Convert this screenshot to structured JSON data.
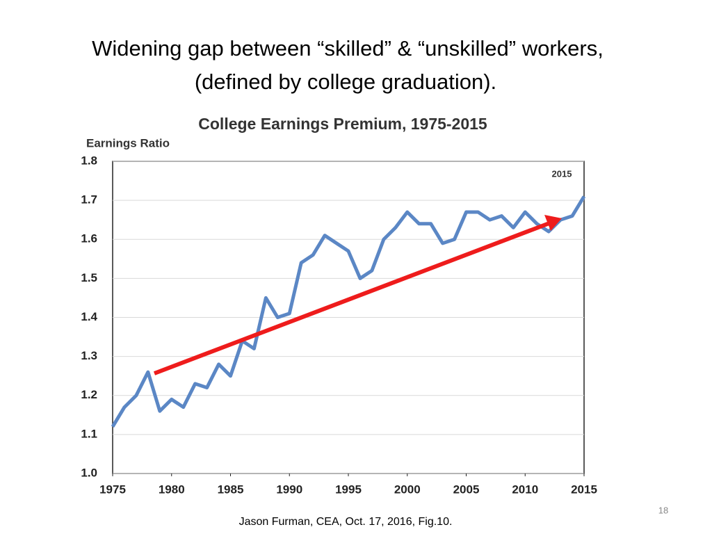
{
  "slide": {
    "title_lines": [
      "Widening gap between “skilled” & “unskilled” workers,",
      "(defined by college graduation)."
    ],
    "footer": "Jason Furman, CEA, Oct. 17, 2016, Fig.10.",
    "page_number": "18"
  },
  "chart_data": {
    "type": "line",
    "title": "College Earnings Premium, 1975-2015",
    "y_label": "Earnings Ratio",
    "annotation": "2015",
    "x": [
      1975,
      1976,
      1977,
      1978,
      1979,
      1980,
      1981,
      1982,
      1983,
      1984,
      1985,
      1986,
      1987,
      1988,
      1989,
      1990,
      1991,
      1992,
      1993,
      1994,
      1995,
      1996,
      1997,
      1998,
      1999,
      2000,
      2001,
      2002,
      2003,
      2004,
      2005,
      2006,
      2007,
      2008,
      2009,
      2010,
      2011,
      2012,
      2013,
      2014,
      2015
    ],
    "values": [
      1.12,
      1.17,
      1.2,
      1.26,
      1.16,
      1.19,
      1.17,
      1.23,
      1.22,
      1.28,
      1.25,
      1.34,
      1.32,
      1.45,
      1.4,
      1.41,
      1.54,
      1.56,
      1.61,
      1.59,
      1.57,
      1.5,
      1.52,
      1.6,
      1.63,
      1.67,
      1.64,
      1.64,
      1.59,
      1.6,
      1.67,
      1.67,
      1.65,
      1.66,
      1.63,
      1.67,
      1.64,
      1.62,
      1.65,
      1.66,
      1.71
    ],
    "color": "#5b87c5",
    "xlim": [
      1975,
      2015
    ],
    "xticks": [
      1975,
      1980,
      1985,
      1990,
      1995,
      2000,
      2005,
      2010,
      2015
    ],
    "ylim": [
      1,
      1.8
    ],
    "yticks": [
      {
        "value": 1,
        "label": "1.0"
      },
      1.1,
      1.2,
      1.3,
      1.4,
      1.5,
      1.6,
      1.7,
      1.8
    ],
    "grid": true
  }
}
